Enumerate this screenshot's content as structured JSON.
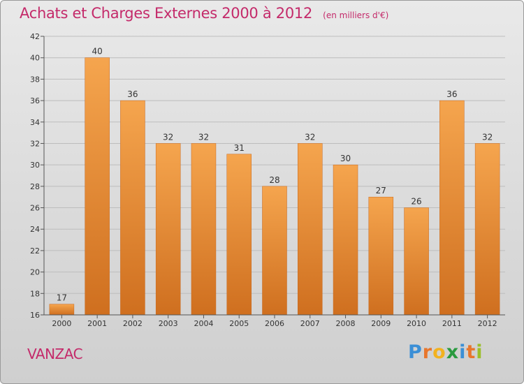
{
  "header": {
    "title": "Achats et Charges Externes 2000 à 2012",
    "subtitle": "(en milliers d'€)"
  },
  "footer": {
    "commune": "VANZAC",
    "logo_text": "Proxiti",
    "logo_colors": [
      "#3b8fd6",
      "#e8762c",
      "#f2b21f",
      "#2a9a3f",
      "#3b8fd6",
      "#e8762c",
      "#9bbf2a"
    ]
  },
  "colors": {
    "bar_light": "#f5a54e",
    "bar_dark": "#cf6f1f",
    "accent": "#c42a6a",
    "grid": "#bdbdbd"
  },
  "chart_data": {
    "type": "bar",
    "categories": [
      "2000",
      "2001",
      "2002",
      "2003",
      "2004",
      "2005",
      "2006",
      "2007",
      "2008",
      "2009",
      "2010",
      "2011",
      "2012"
    ],
    "values": [
      17,
      40,
      36,
      32,
      32,
      31,
      28,
      32,
      30,
      27,
      26,
      36,
      32
    ],
    "data_labels": [
      "17",
      "40",
      "36",
      "32",
      "32",
      "31",
      "28",
      "32",
      "30",
      "27",
      "26",
      "36",
      "32"
    ],
    "ylim": [
      16,
      42
    ],
    "yticks": [
      16,
      18,
      20,
      22,
      24,
      26,
      28,
      30,
      32,
      34,
      36,
      38,
      40,
      42
    ],
    "ytick_labels": [
      "16",
      "18",
      "20",
      "22",
      "24",
      "26",
      "28",
      "30",
      "32",
      "34",
      "36",
      "38",
      "40",
      "42"
    ],
    "grid": true,
    "xlabel": "",
    "ylabel": ""
  }
}
